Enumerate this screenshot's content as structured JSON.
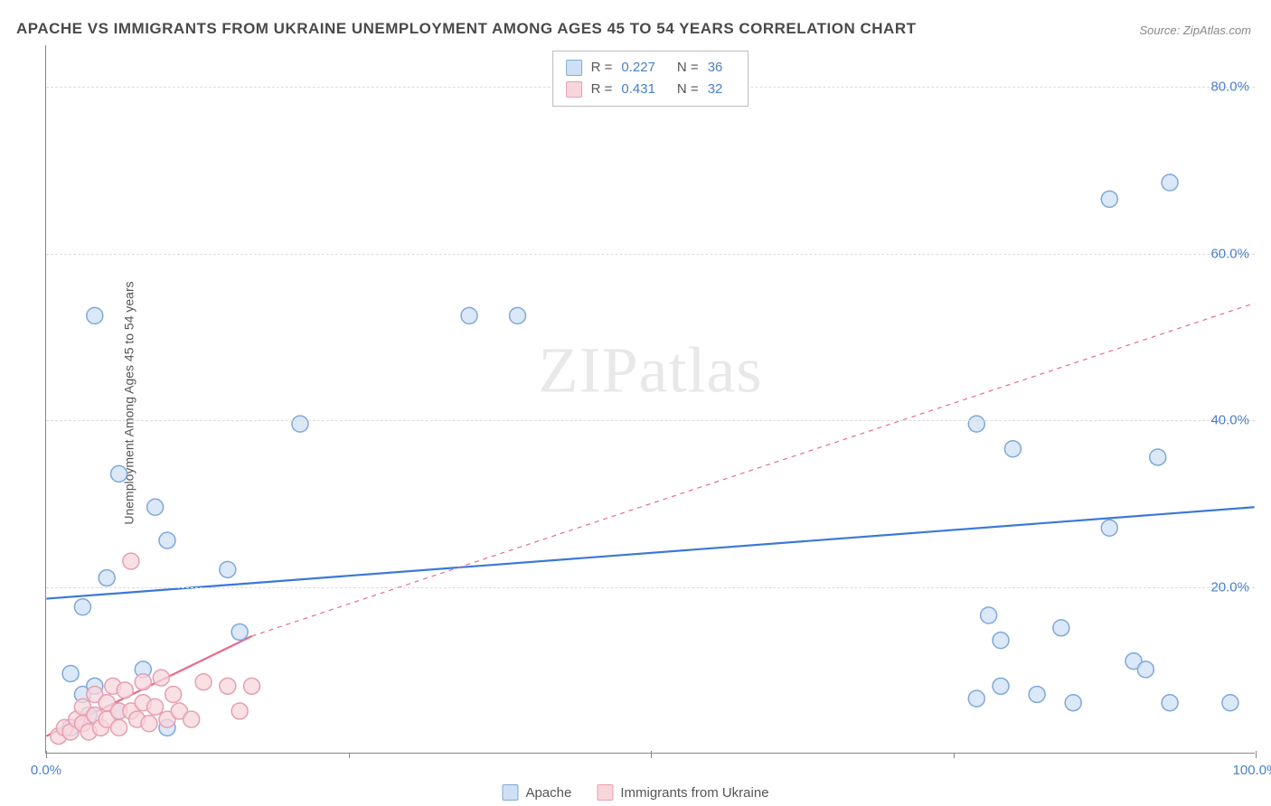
{
  "title": "APACHE VS IMMIGRANTS FROM UKRAINE UNEMPLOYMENT AMONG AGES 45 TO 54 YEARS CORRELATION CHART",
  "source": "Source: ZipAtlas.com",
  "ylabel": "Unemployment Among Ages 45 to 54 years",
  "watermark": "ZIPatlas",
  "chart": {
    "type": "scatter",
    "xlim": [
      0,
      100
    ],
    "ylim": [
      0,
      85
    ],
    "ytick_values": [
      20,
      40,
      60,
      80
    ],
    "ytick_labels": [
      "20.0%",
      "40.0%",
      "60.0%",
      "80.0%"
    ],
    "xtick_values": [
      0,
      50,
      100
    ],
    "xtick_labels": [
      "0.0%",
      "",
      "100.0%"
    ],
    "xtick_minor": [
      25,
      75
    ],
    "grid_color": "#dddddd",
    "axis_color": "#888888",
    "background_color": "#ffffff",
    "marker_radius": 9,
    "marker_stroke_width": 1.5,
    "series": [
      {
        "name": "Apache",
        "color_fill": "#cfe0f4",
        "color_stroke": "#7fa8d9",
        "line_color": "#3b78d8",
        "line_width": 2.2,
        "line_dash": "none",
        "R": "0.227",
        "N": "36",
        "trend": {
          "x1": 0,
          "y1": 18.5,
          "x2": 100,
          "y2": 29.5
        },
        "points": [
          [
            4,
            52.5
          ],
          [
            6,
            33.5
          ],
          [
            3,
            17.5
          ],
          [
            5,
            21.0
          ],
          [
            9,
            29.5
          ],
          [
            10,
            25.5
          ],
          [
            15,
            22.0
          ],
          [
            21,
            39.5
          ],
          [
            16,
            14.5
          ],
          [
            8,
            10.0
          ],
          [
            2,
            9.5
          ],
          [
            3,
            7.0
          ],
          [
            4,
            8.0
          ],
          [
            6,
            5.0
          ],
          [
            10,
            3.0
          ],
          [
            2,
            3.0
          ],
          [
            3.5,
            4.5
          ],
          [
            35,
            52.5
          ],
          [
            39,
            52.5
          ],
          [
            77,
            39.5
          ],
          [
            80,
            36.5
          ],
          [
            92,
            35.5
          ],
          [
            88,
            66.5
          ],
          [
            93,
            68.5
          ],
          [
            88,
            27.0
          ],
          [
            78,
            16.5
          ],
          [
            84,
            15.0
          ],
          [
            79,
            13.5
          ],
          [
            90,
            11.0
          ],
          [
            79,
            8.0
          ],
          [
            82,
            7.0
          ],
          [
            77,
            6.5
          ],
          [
            85,
            6.0
          ],
          [
            93,
            6.0
          ],
          [
            98,
            6.0
          ],
          [
            91,
            10.0
          ]
        ]
      },
      {
        "name": "Immigrants from Ukraine",
        "color_fill": "#f7d5dc",
        "color_stroke": "#e79fb0",
        "line_color": "#e86b8a",
        "line_width": 2.2,
        "line_dash": "5,5",
        "R": "0.431",
        "N": "32",
        "trend_solid": {
          "x1": 0,
          "y1": 2.0,
          "x2": 17,
          "y2": 14.0
        },
        "trend_dash": {
          "x1": 17,
          "y1": 14.0,
          "x2": 100,
          "y2": 54.0
        },
        "points": [
          [
            1,
            2.0
          ],
          [
            1.5,
            3.0
          ],
          [
            2,
            2.5
          ],
          [
            2.5,
            4.0
          ],
          [
            3,
            3.5
          ],
          [
            3,
            5.5
          ],
          [
            3.5,
            2.5
          ],
          [
            4,
            4.5
          ],
          [
            4,
            7.0
          ],
          [
            4.5,
            3.0
          ],
          [
            5,
            6.0
          ],
          [
            5,
            4.0
          ],
          [
            5.5,
            8.0
          ],
          [
            6,
            5.0
          ],
          [
            6,
            3.0
          ],
          [
            6.5,
            7.5
          ],
          [
            7,
            23.0
          ],
          [
            7,
            5.0
          ],
          [
            7.5,
            4.0
          ],
          [
            8,
            8.5
          ],
          [
            8,
            6.0
          ],
          [
            8.5,
            3.5
          ],
          [
            9,
            5.5
          ],
          [
            9.5,
            9.0
          ],
          [
            10,
            4.0
          ],
          [
            10.5,
            7.0
          ],
          [
            11,
            5.0
          ],
          [
            12,
            4.0
          ],
          [
            13,
            8.5
          ],
          [
            15,
            8.0
          ],
          [
            16,
            5.0
          ],
          [
            17,
            8.0
          ]
        ]
      }
    ]
  },
  "legend_bottom": [
    {
      "label": "Apache",
      "fill": "#cfe0f4",
      "stroke": "#7fa8d9"
    },
    {
      "label": "Immigrants from Ukraine",
      "fill": "#f7d5dc",
      "stroke": "#e79fb0"
    }
  ],
  "stats_label_R": "R =",
  "stats_label_N": "N ="
}
